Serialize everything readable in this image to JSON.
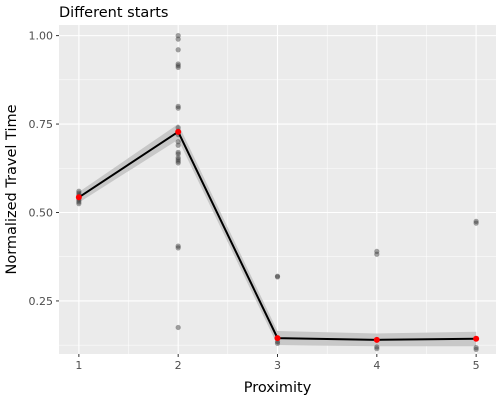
{
  "chart_data": {
    "type": "scatter",
    "title": "Different starts",
    "xlabel": "Proximity",
    "ylabel": "Normalized Travel Time",
    "xlim": [
      0.8,
      5.2
    ],
    "ylim": [
      0.1,
      1.03
    ],
    "x_ticks": [
      1,
      2,
      3,
      4,
      5
    ],
    "x_tick_labels": [
      "1",
      "2",
      "3",
      "4",
      "5"
    ],
    "y_ticks": [
      0.25,
      0.5,
      0.75,
      1.0
    ],
    "y_tick_labels": [
      "0.25",
      "0.50",
      "0.75",
      "1.00"
    ],
    "grid": true,
    "legend": "none",
    "colors": {
      "panel_background": "#ebebeb",
      "grid_line": "#ffffff",
      "raw_points": "#333333",
      "mean_line": "#000000",
      "ribbon": "#c8c8c8",
      "mean_points": "#ff0000"
    },
    "series": [
      {
        "type": "scatter",
        "role": "raw observations",
        "points": [
          {
            "x": 1,
            "y": 0.555
          },
          {
            "x": 1,
            "y": 0.55
          },
          {
            "x": 1,
            "y": 0.545
          },
          {
            "x": 1,
            "y": 0.54
          },
          {
            "x": 1,
            "y": 0.535
          },
          {
            "x": 1,
            "y": 0.53
          },
          {
            "x": 1,
            "y": 0.525
          },
          {
            "x": 1,
            "y": 0.56
          },
          {
            "x": 2,
            "y": 1.0
          },
          {
            "x": 2,
            "y": 0.99
          },
          {
            "x": 2,
            "y": 0.96
          },
          {
            "x": 2,
            "y": 0.92
          },
          {
            "x": 2,
            "y": 0.915
          },
          {
            "x": 2,
            "y": 0.91
          },
          {
            "x": 2,
            "y": 0.8
          },
          {
            "x": 2,
            "y": 0.795
          },
          {
            "x": 2,
            "y": 0.74
          },
          {
            "x": 2,
            "y": 0.73
          },
          {
            "x": 2,
            "y": 0.72
          },
          {
            "x": 2,
            "y": 0.7
          },
          {
            "x": 2,
            "y": 0.69
          },
          {
            "x": 2,
            "y": 0.67
          },
          {
            "x": 2,
            "y": 0.665
          },
          {
            "x": 2,
            "y": 0.655
          },
          {
            "x": 2,
            "y": 0.65
          },
          {
            "x": 2,
            "y": 0.645
          },
          {
            "x": 2,
            "y": 0.64
          },
          {
            "x": 2,
            "y": 0.405
          },
          {
            "x": 2,
            "y": 0.4
          },
          {
            "x": 2,
            "y": 0.175
          },
          {
            "x": 3,
            "y": 0.32
          },
          {
            "x": 3,
            "y": 0.318
          },
          {
            "x": 3,
            "y": 0.135
          },
          {
            "x": 3,
            "y": 0.13
          },
          {
            "x": 4,
            "y": 0.39
          },
          {
            "x": 4,
            "y": 0.382
          },
          {
            "x": 4,
            "y": 0.12
          },
          {
            "x": 4,
            "y": 0.115
          },
          {
            "x": 5,
            "y": 0.475
          },
          {
            "x": 5,
            "y": 0.47
          },
          {
            "x": 5,
            "y": 0.118
          },
          {
            "x": 5,
            "y": 0.113
          }
        ]
      },
      {
        "type": "line",
        "role": "mean with confidence ribbon",
        "x": [
          1,
          2,
          3,
          4,
          5
        ],
        "y": [
          0.543,
          0.728,
          0.145,
          0.14,
          0.143
        ],
        "ribbon_lower": [
          0.528,
          0.706,
          0.125,
          0.122,
          0.122
        ],
        "ribbon_upper": [
          0.558,
          0.75,
          0.165,
          0.158,
          0.163
        ]
      }
    ]
  }
}
